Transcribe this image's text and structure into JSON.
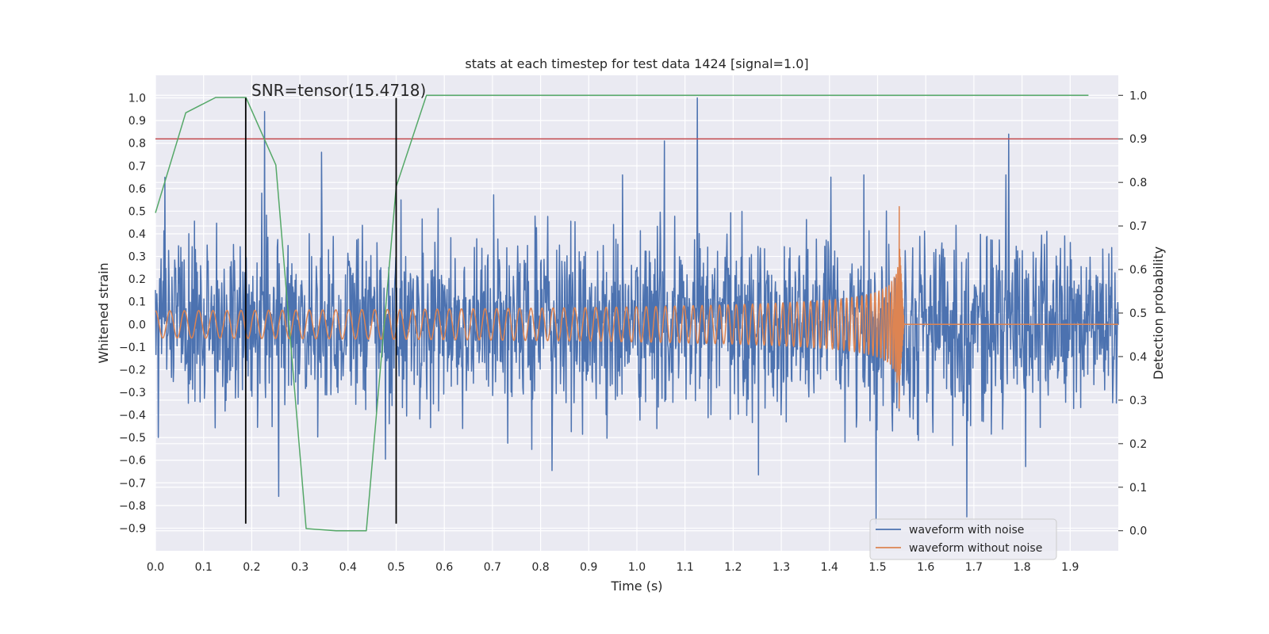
{
  "chart_data": {
    "type": "line",
    "title": "stats at each timestep for test data 1424 [signal=1.0]",
    "xlabel": "Time (s)",
    "ylabel_left": "Whitened strain",
    "ylabel_right": "Detection probability",
    "annotation": "SNR=tensor(15.4718)",
    "xlim": [
      0.0,
      2.0
    ],
    "ylim_left": [
      -1.0,
      1.1
    ],
    "ylim_right": [
      -0.046,
      1.046
    ],
    "x_ticks": [
      0.0,
      0.1,
      0.2,
      0.3,
      0.4,
      0.5,
      0.6,
      0.7,
      0.8,
      0.9,
      1.0,
      1.1,
      1.2,
      1.3,
      1.4,
      1.5,
      1.6,
      1.7,
      1.8,
      1.9
    ],
    "x_tick_labels": [
      "0.0",
      "0.1",
      "0.2",
      "0.3",
      "0.4",
      "0.5",
      "0.6",
      "0.7",
      "0.8",
      "0.9",
      "1.0",
      "1.1",
      "1.2",
      "1.3",
      "1.4",
      "1.5",
      "1.6",
      "1.7",
      "1.8",
      "1.9"
    ],
    "y_left_ticks": [
      1.0,
      0.9,
      0.8,
      0.7,
      0.6,
      0.5,
      0.4,
      0.3,
      0.2,
      0.1,
      0.0,
      -0.1,
      -0.2,
      -0.3,
      -0.4,
      -0.5,
      -0.6,
      -0.7,
      -0.8,
      -0.9
    ],
    "y_left_tick_labels": [
      "1.0",
      "0.9",
      "0.8",
      "0.7",
      "0.6",
      "0.5",
      "0.4",
      "0.3",
      "0.2",
      "0.1",
      "0.0",
      "−0.1",
      "−0.2",
      "−0.3",
      "−0.4",
      "−0.5",
      "−0.6",
      "−0.7",
      "−0.8",
      "−0.9"
    ],
    "y_right_ticks": [
      1.0,
      0.9,
      0.8,
      0.7,
      0.6,
      0.5,
      0.4,
      0.3,
      0.2,
      0.1,
      0.0
    ],
    "y_right_tick_labels": [
      "1.0",
      "0.9",
      "0.8",
      "0.7",
      "0.6",
      "0.5",
      "0.4",
      "0.3",
      "0.2",
      "0.1",
      "0.0"
    ],
    "grid": true,
    "legend_placement": "lower right",
    "series": [
      {
        "name": "waveform with noise",
        "axis": "left",
        "color": "#4c72b0",
        "kind": "noise",
        "x_range": [
          0.0,
          2.0
        ],
        "amplitude_std": 0.2,
        "notable_peaks": [
          [
            0.227,
            0.94
          ],
          [
            1.126,
            1.0
          ],
          [
            1.772,
            0.84
          ],
          [
            1.497,
            -0.88
          ],
          [
            1.685,
            -0.85
          ],
          [
            1.057,
            0.81
          ],
          [
            0.345,
            0.76
          ],
          [
            0.256,
            -0.76
          ]
        ]
      },
      {
        "name": "waveform without noise",
        "axis": "left",
        "color": "#dd8452",
        "kind": "chirp",
        "x_range": [
          0.0,
          2.0
        ],
        "merger_time": 1.545,
        "ringdown_end": 1.555,
        "start_amplitude": 0.08,
        "peak_amplitude": 0.52,
        "min_amplitude": -0.37,
        "start_frequency_hz": 33
      },
      {
        "name": "",
        "axis": "right",
        "color": "#55a868",
        "kind": "polyline",
        "x": [
          0.0,
          0.063,
          0.125,
          0.188,
          0.25,
          0.313,
          0.375,
          0.438,
          0.5,
          0.563,
          0.625,
          0.688,
          0.75,
          0.813,
          0.875,
          0.938,
          1.0,
          1.063,
          1.125,
          1.188,
          1.25,
          1.313,
          1.375,
          1.438,
          1.5,
          1.563,
          1.625,
          1.688,
          1.75,
          1.813,
          1.875,
          1.938
        ],
        "y": [
          0.73,
          0.96,
          0.995,
          0.995,
          0.84,
          0.005,
          0.0,
          0.0,
          0.79,
          1.0,
          1.0,
          1.0,
          1.0,
          1.0,
          1.0,
          1.0,
          1.0,
          1.0,
          1.0,
          1.0,
          1.0,
          1.0,
          1.0,
          1.0,
          1.0,
          1.0,
          1.0,
          1.0,
          1.0,
          1.0,
          1.0,
          1.0
        ]
      }
    ],
    "threshold": {
      "axis": "right",
      "value": 0.9,
      "color": "#c44e52"
    },
    "vertical_markers": [
      {
        "x": 0.1875,
        "y0": -0.88,
        "y1": 1.0,
        "color": "#000000"
      },
      {
        "x": 0.5,
        "y0": -0.88,
        "y1": 1.0,
        "color": "#000000"
      }
    ]
  }
}
